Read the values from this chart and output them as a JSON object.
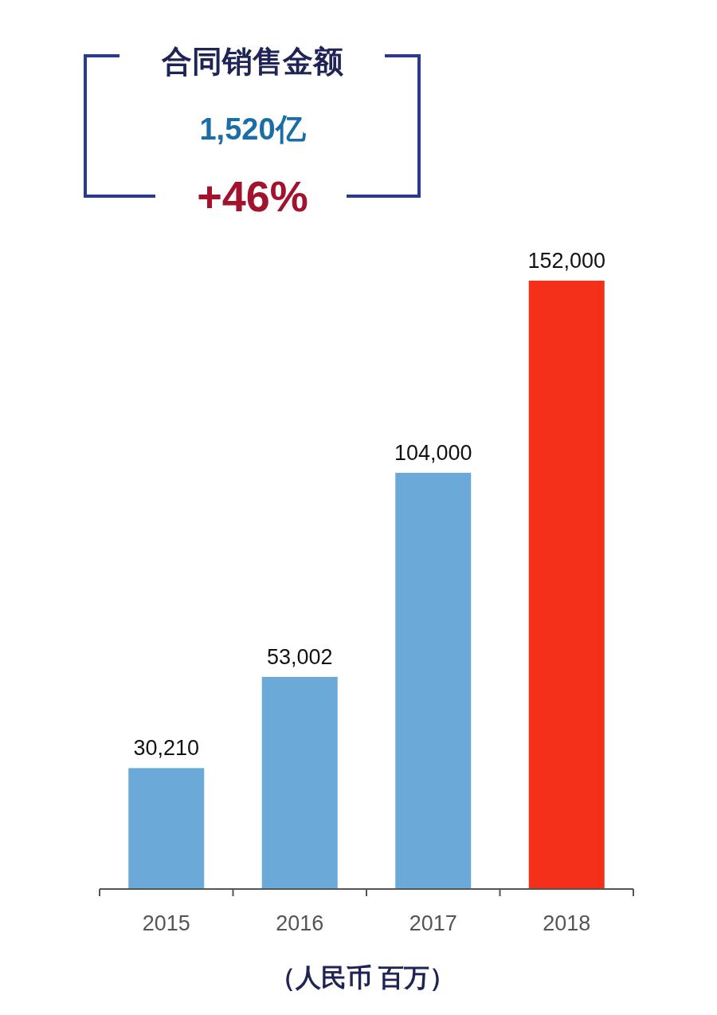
{
  "chart_data": {
    "type": "bar",
    "title": "合同销售金额",
    "annotations": [
      "1,520亿",
      "+46%"
    ],
    "xlabel": "（人民币 百万）",
    "categories": [
      "2015",
      "2016",
      "2017",
      "2018"
    ],
    "values": [
      30210,
      53002,
      104000,
      152000
    ],
    "colors": [
      "#6aa9d8",
      "#6aa9d8",
      "#6aa9d8",
      "#f5301a"
    ],
    "value_labels": [
      "30,210",
      "53,002",
      "104,000",
      "152,000"
    ]
  }
}
